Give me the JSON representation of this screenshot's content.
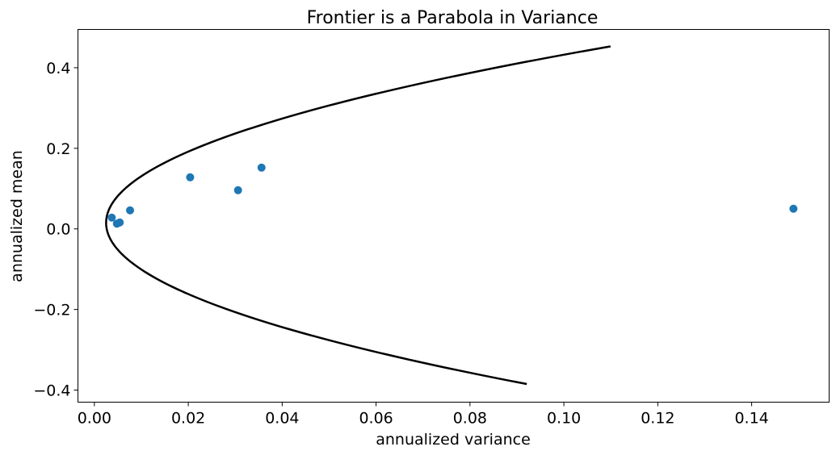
{
  "chart_data": {
    "type": "scatter",
    "title": "Frontier is a Parabola in Variance",
    "xlabel": "annualized variance",
    "ylabel": "annualized mean",
    "xlim": [
      -0.0035,
      0.1565
    ],
    "ylim": [
      -0.43,
      0.495
    ],
    "grid": false,
    "x_ticks": [
      0.0,
      0.02,
      0.04,
      0.06,
      0.08,
      0.1,
      0.12,
      0.14
    ],
    "x_tick_labels": [
      "0.00",
      "0.02",
      "0.04",
      "0.06",
      "0.08",
      "0.10",
      "0.12",
      "0.14"
    ],
    "y_ticks": [
      -0.4,
      -0.2,
      0.0,
      0.2,
      0.4
    ],
    "y_tick_labels": [
      "−0.4",
      "−0.2",
      "0.0",
      "0.2",
      "0.4"
    ],
    "frontier": {
      "color": "#000000",
      "variance_min": 0.0025,
      "mean_at_min_variance": 0.015,
      "curvature": 0.56,
      "mean_range": [
        -0.385,
        0.453
      ]
    },
    "points": {
      "color": "#1f77b4",
      "x": [
        0.0037,
        0.0048,
        0.0054,
        0.0076,
        0.0204,
        0.0306,
        0.0356,
        0.1489
      ],
      "y": [
        0.028,
        0.013,
        0.016,
        0.046,
        0.128,
        0.096,
        0.152,
        0.05
      ]
    }
  }
}
